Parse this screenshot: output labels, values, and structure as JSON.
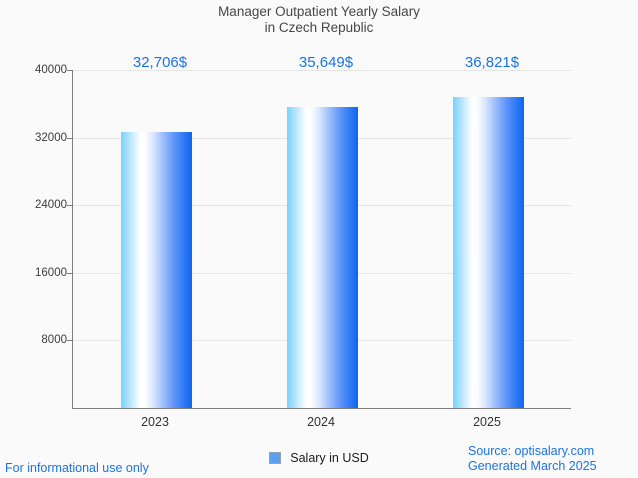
{
  "header": {
    "title_line1": "Manager Outpatient Yearly Salary",
    "title_line2": "in Czech Republic"
  },
  "chart_data": {
    "type": "bar",
    "title": "Manager Outpatient Yearly Salary in Czech Republic",
    "categories": [
      "2023",
      "2024",
      "2025"
    ],
    "series": [
      {
        "name": "Salary in USD",
        "values": [
          32706,
          35649,
          36821
        ]
      }
    ],
    "value_labels": [
      "32,706$",
      "35,649$",
      "36,821$"
    ],
    "xlabel": "",
    "ylabel": "",
    "ylim": [
      0,
      40000
    ],
    "yticks": [
      8000,
      16000,
      24000,
      32000,
      40000
    ],
    "grid": true,
    "legend_position": "bottom",
    "colors": {
      "bar_edge_light": "#79d1fb",
      "bar_mid": "#ffffff",
      "bar_edge_dark": "#0d67f1",
      "value_label_text": "#1a73e8",
      "legend_swatch": "#59a0ee",
      "gridline": "#e5e5e5",
      "axis_line": "#7d7d7d",
      "title_text": "#464646",
      "footer_text": "#1a73e8"
    }
  },
  "footer": {
    "disclaimer": "For informational use only",
    "source": "Source: optisalary.com",
    "generated": "Generated March 2025"
  }
}
